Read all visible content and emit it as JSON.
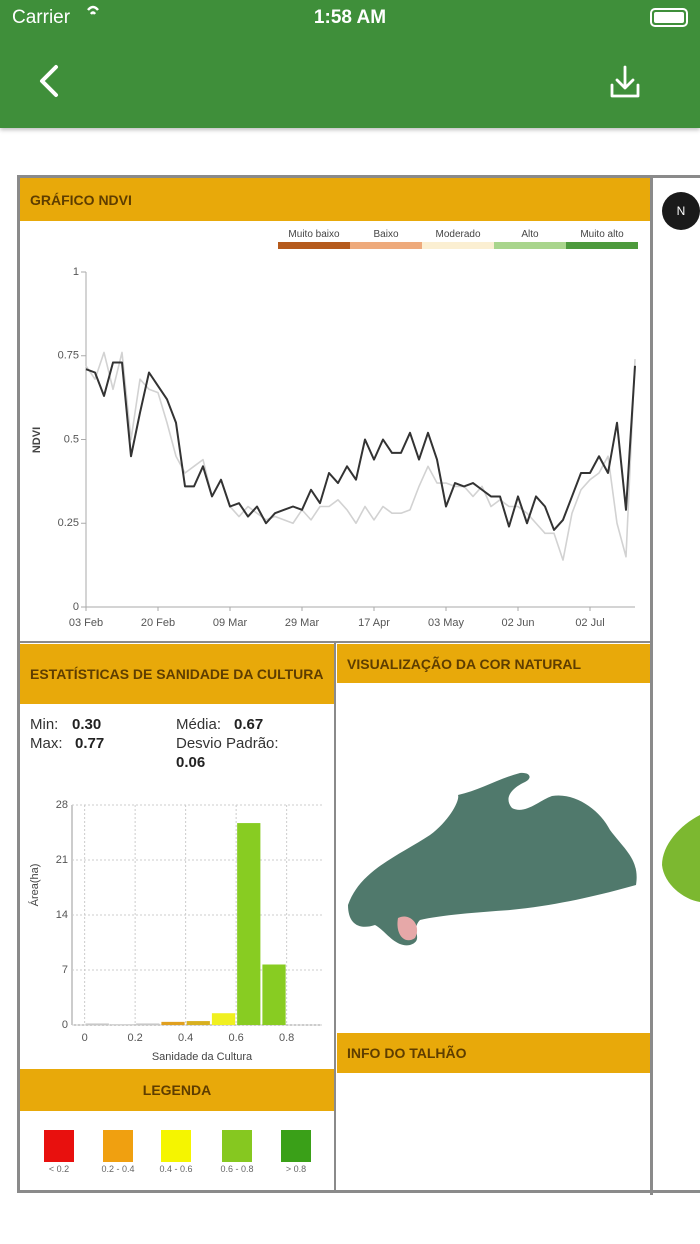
{
  "status_bar": {
    "carrier": "Carrier",
    "time": "1:58 AM"
  },
  "ndvi_panel": {
    "title": "GRÁFICO NDVI"
  },
  "chart_data": [
    {
      "type": "line",
      "y_label": "NDVI",
      "bands": [
        {
          "name": "Muito baixo",
          "color": "#b55a1c"
        },
        {
          "name": "Baixo",
          "color": "#eeaa7c"
        },
        {
          "name": "Moderado",
          "color": "#fbefd2"
        },
        {
          "name": "Alto",
          "color": "#a9d58c"
        },
        {
          "name": "Muito alto",
          "color": "#4d9a3c"
        }
      ],
      "categories": [
        "03 Feb",
        null,
        null,
        null,
        null,
        null,
        null,
        null,
        "20 Feb",
        null,
        null,
        null,
        null,
        null,
        null,
        null,
        "09 Mar",
        null,
        null,
        null,
        null,
        null,
        null,
        null,
        "29 Mar",
        null,
        null,
        null,
        null,
        null,
        null,
        null,
        "17 Apr",
        null,
        null,
        null,
        null,
        null,
        null,
        null,
        "03 May",
        null,
        null,
        null,
        null,
        null,
        null,
        null,
        "02 Jun",
        null,
        null,
        null,
        null,
        null,
        null,
        null,
        "02 Jul",
        null,
        null,
        null,
        null,
        null
      ],
      "series": [
        {
          "color": "#d2d2d2",
          "values": [
            0.72,
            0.68,
            0.76,
            0.65,
            0.76,
            0.5,
            0.68,
            0.65,
            0.64,
            0.55,
            0.45,
            0.4,
            0.42,
            0.44,
            0.33,
            0.38,
            0.3,
            0.27,
            0.3,
            0.28,
            0.26,
            0.27,
            0.26,
            0.25,
            0.29,
            0.26,
            0.3,
            0.3,
            0.32,
            0.29,
            0.25,
            0.3,
            0.26,
            0.3,
            0.28,
            0.28,
            0.29,
            0.36,
            0.42,
            0.37,
            0.37,
            0.36,
            0.36,
            0.33,
            0.36,
            0.3,
            0.32,
            0.3,
            0.3,
            0.28,
            0.25,
            0.22,
            0.22,
            0.14,
            0.28,
            0.35,
            0.38,
            0.4,
            0.45,
            0.25,
            0.15,
            0.74
          ]
        },
        {
          "color": "#333333",
          "values": [
            0.71,
            0.7,
            0.63,
            0.73,
            0.73,
            0.45,
            0.58,
            0.7,
            0.66,
            0.62,
            0.55,
            0.36,
            0.36,
            0.42,
            0.33,
            0.38,
            0.3,
            0.31,
            0.27,
            0.3,
            0.25,
            0.28,
            0.29,
            0.3,
            0.29,
            0.35,
            0.31,
            0.4,
            0.37,
            0.42,
            0.38,
            0.5,
            0.44,
            0.5,
            0.46,
            0.46,
            0.52,
            0.44,
            0.52,
            0.44,
            0.3,
            0.37,
            0.36,
            0.37,
            0.35,
            0.33,
            0.33,
            0.24,
            0.33,
            0.25,
            0.33,
            0.3,
            0.23,
            0.26,
            0.33,
            0.4,
            0.4,
            0.45,
            0.4,
            0.55,
            0.29,
            0.72
          ]
        }
      ],
      "ylim": [
        0,
        1
      ],
      "yticks": [
        0,
        0.25,
        0.5,
        0.75,
        1
      ]
    },
    {
      "type": "histogram",
      "x_label": "Sanidade da Cultura",
      "y_label": "Área(ha)",
      "bins": [
        0,
        0.1,
        0.2,
        0.3,
        0.4,
        0.5,
        0.6,
        0.7,
        0.8
      ],
      "values": [
        0.2,
        0.1,
        0.2,
        0.4,
        0.5,
        1.5,
        25.7,
        7.7
      ],
      "colors": [
        "#c8c8c8",
        "#c8c8c8",
        "#c8c8c8",
        "#e0a020",
        "#d8b020",
        "#f0f020",
        "#88cc22",
        "#88cc22"
      ],
      "xlim": [
        -0.05,
        0.94
      ],
      "xticks": [
        0,
        0.2,
        0.4,
        0.6,
        0.8
      ],
      "ylim": [
        0,
        28
      ],
      "yticks": [
        0,
        7,
        14,
        21,
        28
      ],
      "grid": true
    }
  ],
  "stats": {
    "title": "ESTATÍSTICAS DE SANIDADE DA CULTURA",
    "items": [
      {
        "label": "Min:",
        "value": "0.30"
      },
      {
        "label": "Max:",
        "value": "0.77"
      },
      {
        "label": "Média:",
        "value": "0.67"
      },
      {
        "label": "Desvio Padrão:",
        "value": "0.06"
      }
    ]
  },
  "legend_panel": {
    "title": "LEGENDA",
    "items": [
      {
        "label": "< 0.2",
        "color": "#e8100e"
      },
      {
        "label": "0.2 - 0.4",
        "color": "#f0a010"
      },
      {
        "label": "0.4 - 0.6",
        "color": "#f5f500"
      },
      {
        "label": "0.6 - 0.8",
        "color": "#86c820"
      },
      {
        "label": "> 0.8",
        "color": "#3aa018"
      }
    ]
  },
  "natural_color": {
    "title": "VISUALIZAÇÃO DA COR NATURAL"
  },
  "info": {
    "title": "INFO DO TALHÃO"
  },
  "compass": "N"
}
